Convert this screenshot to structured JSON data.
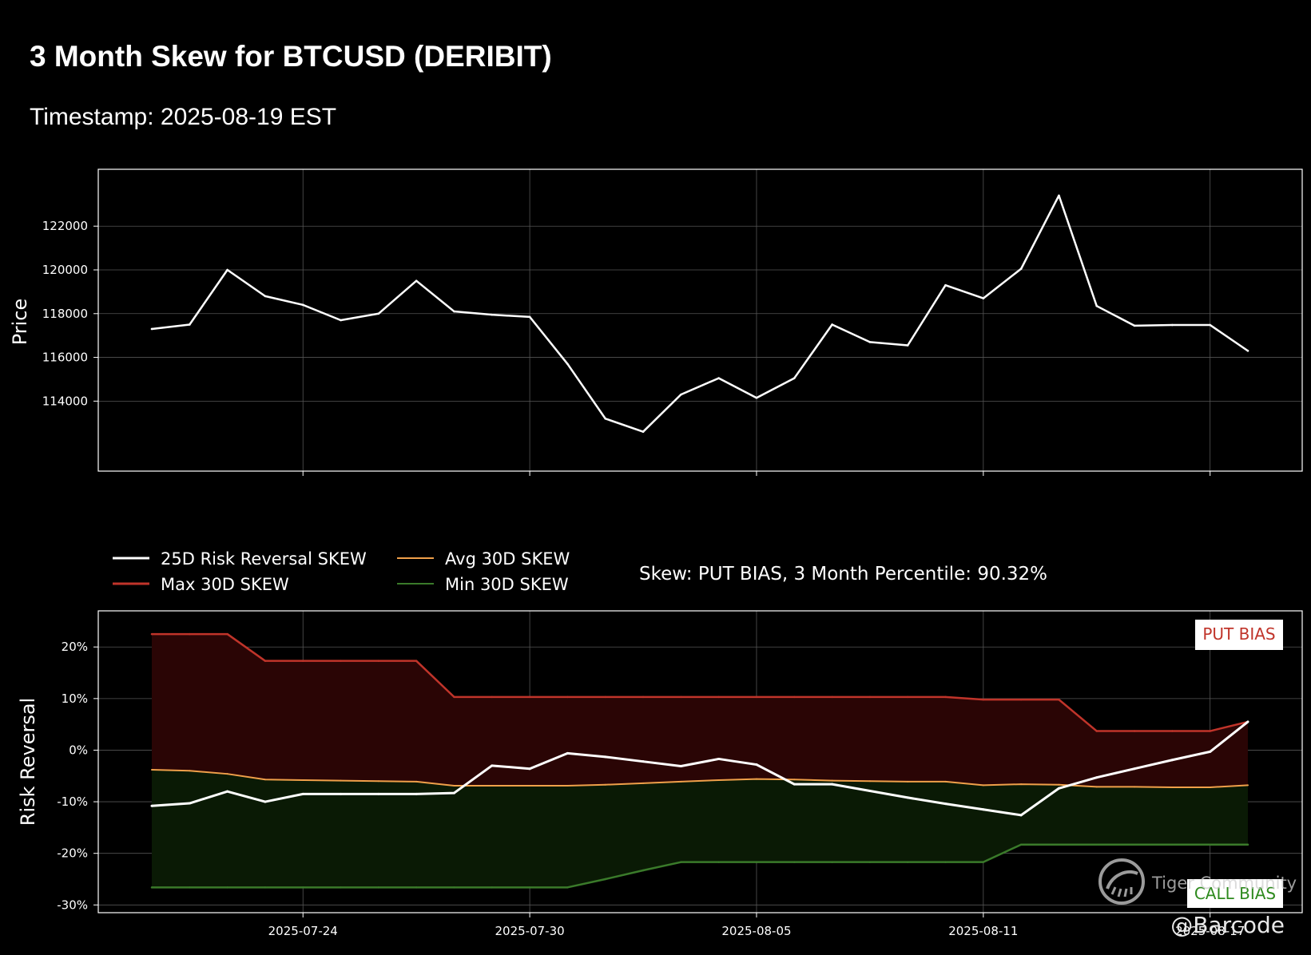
{
  "header": {
    "title": "3 Month Skew for BTCUSD (DERIBIT)",
    "subtitle": "Timestamp: 2025-08-19 EST"
  },
  "colors": {
    "background": "#000000",
    "price_line": "#ffffff",
    "skew_line": "#ffffff",
    "max_line": "#c0342a",
    "avg_line": "#f0a04a",
    "min_line": "#3a7a2a",
    "put_fill": "#2a0505",
    "call_fill": "#0a1a05",
    "put_label": "#c0342a",
    "call_label": "#2e8a1e"
  },
  "chart_data": [
    {
      "type": "line",
      "title": "",
      "xlabel": "",
      "ylabel": "Price",
      "x_ticks": [
        "2025-07-24",
        "2025-07-30",
        "2025-08-05",
        "2025-08-11",
        "2025-08-17"
      ],
      "x_ticks_labeled": false,
      "y_ticks": [
        114000,
        116000,
        118000,
        120000,
        122000
      ],
      "y_tick_labels": [
        "114000",
        "116000",
        "118000",
        "120000",
        "122000"
      ],
      "ylim": [
        110800,
        124600
      ],
      "grid": true,
      "x_start": "2025-07-20",
      "series": [
        {
          "name": "Price",
          "values": [
            117300,
            117500,
            120000,
            118800,
            118400,
            117700,
            118000,
            119500,
            118100,
            117950,
            117850,
            115700,
            113200,
            112600,
            114300,
            115050,
            114150,
            115050,
            117500,
            116700,
            116550,
            119300,
            118700,
            120050,
            123400,
            118350,
            117450,
            117480,
            117480,
            116300
          ]
        }
      ]
    },
    {
      "type": "area",
      "title": "",
      "xlabel": "",
      "ylabel": "Risk Reversal",
      "x_ticks": [
        "2025-07-24",
        "2025-07-30",
        "2025-08-05",
        "2025-08-11",
        "2025-08-17"
      ],
      "x_tick_labels": [
        "2025-07-24",
        "2025-07-30",
        "2025-08-05",
        "2025-08-11",
        "2025-08-17"
      ],
      "y_ticks": [
        -30,
        -20,
        -10,
        0,
        10,
        20
      ],
      "y_tick_labels": [
        "-30%",
        "-20%",
        "-10%",
        "0%",
        "10%",
        "20%"
      ],
      "ylim": [
        -31.5,
        27
      ],
      "grid": true,
      "x_start": "2025-07-20",
      "legend": [
        {
          "label": "25D Risk Reversal SKEW",
          "color": "#ffffff"
        },
        {
          "label": "Max 30D SKEW",
          "color": "#c0342a"
        },
        {
          "label": "Avg 30D SKEW",
          "color": "#f0a04a"
        },
        {
          "label": "Min 30D SKEW",
          "color": "#3a7a2a"
        }
      ],
      "status_text": "Skew: PUT BIAS, 3 Month Percentile: 90.32%",
      "region_labels": {
        "top": "PUT BIAS",
        "bottom": "CALL BIAS"
      },
      "series": [
        {
          "name": "25D Risk Reversal SKEW",
          "values": [
            -10.8,
            -10.3,
            -8.0,
            -10.0,
            -8.5,
            -8.5,
            -8.5,
            -8.5,
            -8.3,
            -3.0,
            -3.6,
            -0.6,
            -1.3,
            -2.2,
            -3.1,
            -1.7,
            -2.8,
            -6.6,
            -6.6,
            -7.9,
            -9.2,
            -10.4,
            -11.5,
            -12.6,
            -7.4,
            -5.3,
            -3.6,
            -1.9,
            -0.3,
            5.5
          ]
        },
        {
          "name": "Max 30D SKEW",
          "values": [
            22.5,
            22.5,
            22.5,
            17.3,
            17.3,
            17.3,
            17.3,
            17.3,
            10.3,
            10.3,
            10.3,
            10.3,
            10.3,
            10.3,
            10.3,
            10.3,
            10.3,
            10.3,
            10.3,
            10.3,
            10.3,
            10.3,
            9.8,
            9.8,
            9.8,
            3.7,
            3.7,
            3.7,
            3.7,
            5.5
          ]
        },
        {
          "name": "Avg 30D SKEW",
          "values": [
            -3.8,
            -4.0,
            -4.6,
            -5.7,
            -5.8,
            -5.9,
            -6.0,
            -6.1,
            -6.9,
            -6.9,
            -6.9,
            -6.9,
            -6.7,
            -6.4,
            -6.1,
            -5.8,
            -5.6,
            -5.7,
            -5.9,
            -6.0,
            -6.1,
            -6.1,
            -6.8,
            -6.6,
            -6.7,
            -7.1,
            -7.1,
            -7.2,
            -7.2,
            -6.8
          ]
        },
        {
          "name": "Min 30D SKEW",
          "values": [
            -26.6,
            -26.6,
            -26.6,
            -26.6,
            -26.6,
            -26.6,
            -26.6,
            -26.6,
            -26.6,
            -26.6,
            -26.6,
            -26.6,
            -25.0,
            -23.3,
            -21.7,
            -21.7,
            -21.7,
            -21.7,
            -21.7,
            -21.7,
            -21.7,
            -21.7,
            -21.7,
            -18.3,
            -18.3,
            -18.3,
            -18.3,
            -18.3,
            -18.3,
            -18.3
          ]
        }
      ]
    }
  ],
  "watermark": {
    "brand": "Tiger Community",
    "handle": "@Barcode"
  }
}
